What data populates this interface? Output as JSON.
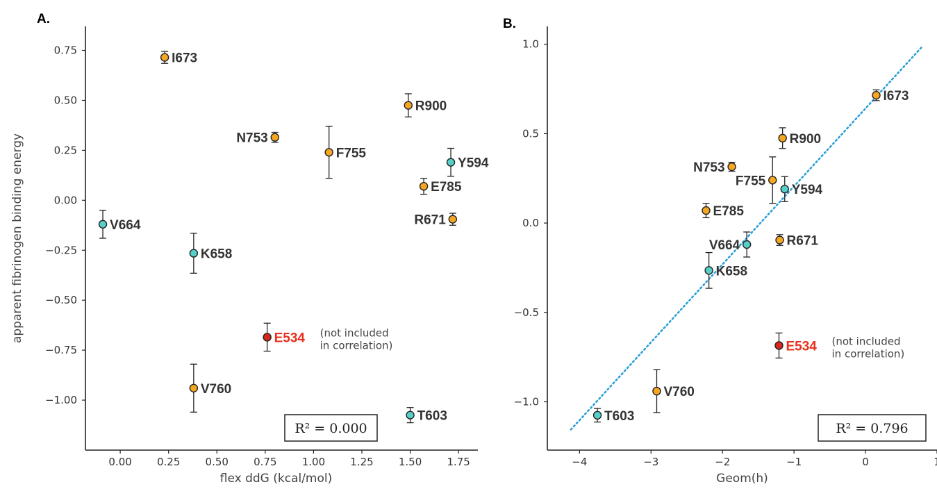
{
  "chart_data": [
    {
      "type": "scatter",
      "panel": "A.",
      "xlabel": "flex ddG (kcal/mol)",
      "ylabel": "apparent fibrinogen binding energy",
      "xlim": [
        -0.18,
        1.85
      ],
      "ylim": [
        -1.25,
        0.87
      ],
      "xticks": [
        0.0,
        0.25,
        0.5,
        0.75,
        1.0,
        1.25,
        1.5,
        1.75
      ],
      "xtick_labels": [
        "0.00",
        "0.25",
        "0.50",
        "0.75",
        "1.00",
        "1.25",
        "1.50",
        "1.75"
      ],
      "yticks": [
        0.75,
        0.5,
        0.25,
        0.0,
        -0.25,
        -0.5,
        -0.75,
        -1.0
      ],
      "ytick_labels": [
        "0.75",
        "0.50",
        "0.25",
        "0.00",
        "−0.25",
        "−0.50",
        "−0.75",
        "−1.00"
      ],
      "grid": false,
      "points": [
        {
          "label": "I673",
          "x": 0.23,
          "y": 0.715,
          "err": 0.03,
          "color": "#f5a623",
          "label_side": "right"
        },
        {
          "label": "R900",
          "x": 1.49,
          "y": 0.475,
          "err": 0.058,
          "color": "#f5a623",
          "label_side": "right"
        },
        {
          "label": "N753",
          "x": 0.8,
          "y": 0.315,
          "err": 0.025,
          "color": "#f5a623",
          "label_side": "left"
        },
        {
          "label": "F755",
          "x": 1.08,
          "y": 0.24,
          "err": 0.13,
          "color": "#f5a623",
          "label_side": "right"
        },
        {
          "label": "Y594",
          "x": 1.71,
          "y": 0.19,
          "err": 0.07,
          "color": "#56cfc8",
          "label_side": "right"
        },
        {
          "label": "E785",
          "x": 1.57,
          "y": 0.07,
          "err": 0.04,
          "color": "#f5a623",
          "label_side": "right"
        },
        {
          "label": "V664",
          "x": -0.09,
          "y": -0.12,
          "err": 0.07,
          "color": "#56cfc8",
          "label_side": "right"
        },
        {
          "label": "R671",
          "x": 1.72,
          "y": -0.095,
          "err": 0.03,
          "color": "#f5a623",
          "label_side": "left"
        },
        {
          "label": "K658",
          "x": 0.38,
          "y": -0.265,
          "err": 0.1,
          "color": "#56cfc8",
          "label_side": "right"
        },
        {
          "label": "E534",
          "x": 0.76,
          "y": -0.685,
          "err": 0.07,
          "color": "#d7261b",
          "label_side": "right",
          "label_color": "#e8301c"
        },
        {
          "label": "V760",
          "x": 0.38,
          "y": -0.94,
          "err": 0.12,
          "color": "#f5a623",
          "label_side": "right"
        },
        {
          "label": "T603",
          "x": 1.5,
          "y": -1.075,
          "err": 0.038,
          "color": "#56cfc8",
          "label_side": "right"
        }
      ],
      "annotation": {
        "line1": "(not included",
        "line2": "in correlation)"
      },
      "r2_text": "R² = 0.000",
      "fit_line": null
    },
    {
      "type": "scatter",
      "panel": "B.",
      "xlabel": "Geom(h)",
      "ylabel": "",
      "xlim": [
        -4.45,
        1.0
      ],
      "ylim": [
        -1.27,
        1.1
      ],
      "xticks": [
        -4,
        -3,
        -2,
        -1,
        0,
        1
      ],
      "xtick_labels": [
        "−4",
        "−3",
        "−2",
        "−1",
        "0",
        "1"
      ],
      "yticks": [
        1.0,
        0.5,
        0.0,
        -0.5,
        -1.0
      ],
      "ytick_labels": [
        "1.0",
        "0.5",
        "0.0",
        "−0.5",
        "−1.0"
      ],
      "grid": false,
      "points": [
        {
          "label": "I673",
          "x": 0.15,
          "y": 0.715,
          "err": 0.03,
          "color": "#f5a623",
          "label_side": "right"
        },
        {
          "label": "R900",
          "x": -1.16,
          "y": 0.475,
          "err": 0.058,
          "color": "#f5a623",
          "label_side": "right"
        },
        {
          "label": "N753",
          "x": -1.87,
          "y": 0.315,
          "err": 0.025,
          "color": "#f5a623",
          "label_side": "left"
        },
        {
          "label": "F755",
          "x": -1.3,
          "y": 0.24,
          "err": 0.13,
          "color": "#f5a623",
          "label_side": "left"
        },
        {
          "label": "Y594",
          "x": -1.13,
          "y": 0.19,
          "err": 0.07,
          "color": "#56cfc8",
          "label_side": "right"
        },
        {
          "label": "E785",
          "x": -2.23,
          "y": 0.07,
          "err": 0.04,
          "color": "#f5a623",
          "label_side": "right"
        },
        {
          "label": "V664",
          "x": -1.66,
          "y": -0.12,
          "err": 0.07,
          "color": "#56cfc8",
          "label_side": "left"
        },
        {
          "label": "R671",
          "x": -1.2,
          "y": -0.095,
          "err": 0.03,
          "color": "#f5a623",
          "label_side": "right"
        },
        {
          "label": "K658",
          "x": -2.19,
          "y": -0.265,
          "err": 0.1,
          "color": "#56cfc8",
          "label_side": "right"
        },
        {
          "label": "E534",
          "x": -1.21,
          "y": -0.685,
          "err": 0.07,
          "color": "#d7261b",
          "label_side": "right",
          "label_color": "#e8301c"
        },
        {
          "label": "V760",
          "x": -2.92,
          "y": -0.94,
          "err": 0.12,
          "color": "#f5a623",
          "label_side": "right"
        },
        {
          "label": "T603",
          "x": -3.75,
          "y": -1.075,
          "err": 0.038,
          "color": "#56cfc8",
          "label_side": "right"
        }
      ],
      "annotation": {
        "line1": "(not included",
        "line2": "in correlation)"
      },
      "r2_text": "R² = 0.796",
      "fit_line": {
        "x1": -4.12,
        "y1": -1.155,
        "x2": 0.8,
        "y2": 0.99,
        "color": "#2a9fd6",
        "style": "dotted"
      }
    }
  ]
}
